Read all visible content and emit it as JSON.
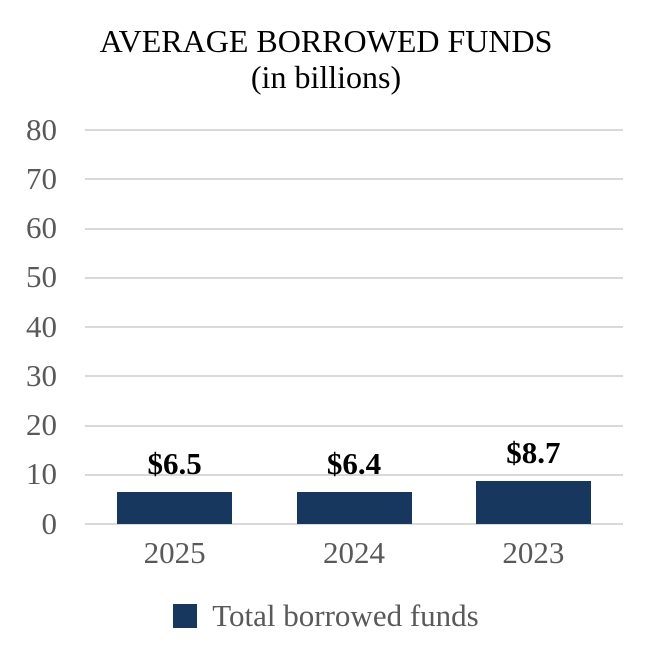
{
  "header": {
    "title": "AVERAGE BORROWED FUNDS",
    "subtitle": "(in billions)"
  },
  "legend": {
    "label": "Total borrowed funds"
  },
  "colors": {
    "bar": "#17375E",
    "axis_text": "#595959",
    "gridline": "#D9D9D9",
    "data_label": "#000000",
    "title_text": "#000000",
    "background": "#FFFFFF"
  },
  "chart_data": {
    "type": "bar",
    "title": "AVERAGE BORROWED FUNDS",
    "subtitle": "(in billions)",
    "categories": [
      "2025",
      "2024",
      "2023"
    ],
    "series": [
      {
        "name": "Total borrowed funds",
        "values": [
          6.5,
          6.4,
          8.7
        ]
      }
    ],
    "data_labels": [
      "$6.5",
      "$6.4",
      "$8.7"
    ],
    "xlabel": "",
    "ylabel": "",
    "ylim": [
      0,
      80
    ],
    "yticks": [
      0,
      10,
      20,
      30,
      40,
      50,
      60,
      70,
      80
    ],
    "grid": true,
    "legend_position": "bottom"
  }
}
